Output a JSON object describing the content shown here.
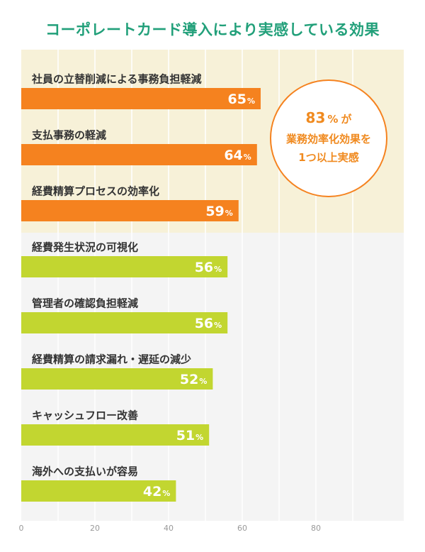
{
  "title": "コーポレートカード導入により実感している効果",
  "chart_data": {
    "type": "bar",
    "orientation": "horizontal",
    "categories": [
      "社員の立替削減による事務負担軽減",
      "支払事務の軽減",
      "経費精算プロセスの効率化",
      "経費発生状況の可視化",
      "管理者の確認負担軽減",
      "経費精算の請求漏れ・遅延の減少",
      "キャッシュフロー改善",
      "海外への支払いが容易"
    ],
    "values": [
      65,
      64,
      59,
      56,
      56,
      52,
      51,
      42
    ],
    "value_suffix": "%",
    "highlight_count": 3,
    "xlim": [
      0,
      100
    ],
    "xticks": [
      0,
      20,
      40,
      60,
      80
    ],
    "colors": {
      "highlight_bar": "#f5821f",
      "normal_bar": "#c2d630",
      "highlight_bg": "#f7f1d8",
      "normal_bg": "#f4f4f4",
      "title": "#22a07a"
    },
    "callout": {
      "line1_num": "83",
      "line1_pct": "%",
      "line1_tail": "が",
      "line2": "業務効率化効果を",
      "line3": "1つ以上実感"
    }
  }
}
